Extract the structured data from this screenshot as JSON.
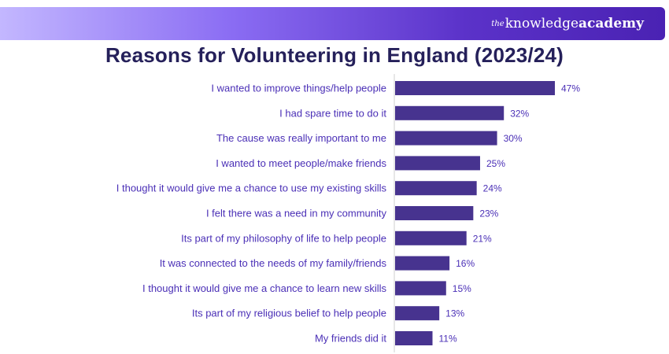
{
  "brand": {
    "logo_prefix": "the",
    "logo_word1": "knowledge",
    "logo_word2": "academy",
    "colors": {
      "bar_gradient_start": "#c3b7ff",
      "bar_gradient_end": "#4a22b3"
    }
  },
  "chart_data": {
    "type": "bar",
    "orientation": "horizontal",
    "title": "Reasons for Volunteering in England (2023/24)",
    "xlabel": "",
    "ylabel": "",
    "xlim": [
      0,
      50
    ],
    "grid": false,
    "legend": "none",
    "bar_color": "#47338f",
    "label_color": "#4a2fb6",
    "categories": [
      "I wanted to improve things/help people",
      "I had spare time to do it",
      "The cause was really important to me",
      "I wanted to meet people/make friends",
      "I thought it would give me a chance to use my existing skills",
      "I felt there was a need in my community",
      "Its part of my philosophy of life to help people",
      "It was connected to the needs of my family/friends",
      "I thought it would give me a chance to learn new skills",
      "Its part of my religious belief to help people",
      "My friends did it"
    ],
    "values": [
      47,
      32,
      30,
      25,
      24,
      23,
      21,
      16,
      15,
      13,
      11
    ],
    "value_labels": [
      "47%",
      "32%",
      "30%",
      "25%",
      "24%",
      "23%",
      "21%",
      "16%",
      "15%",
      "13%",
      "11%"
    ]
  }
}
